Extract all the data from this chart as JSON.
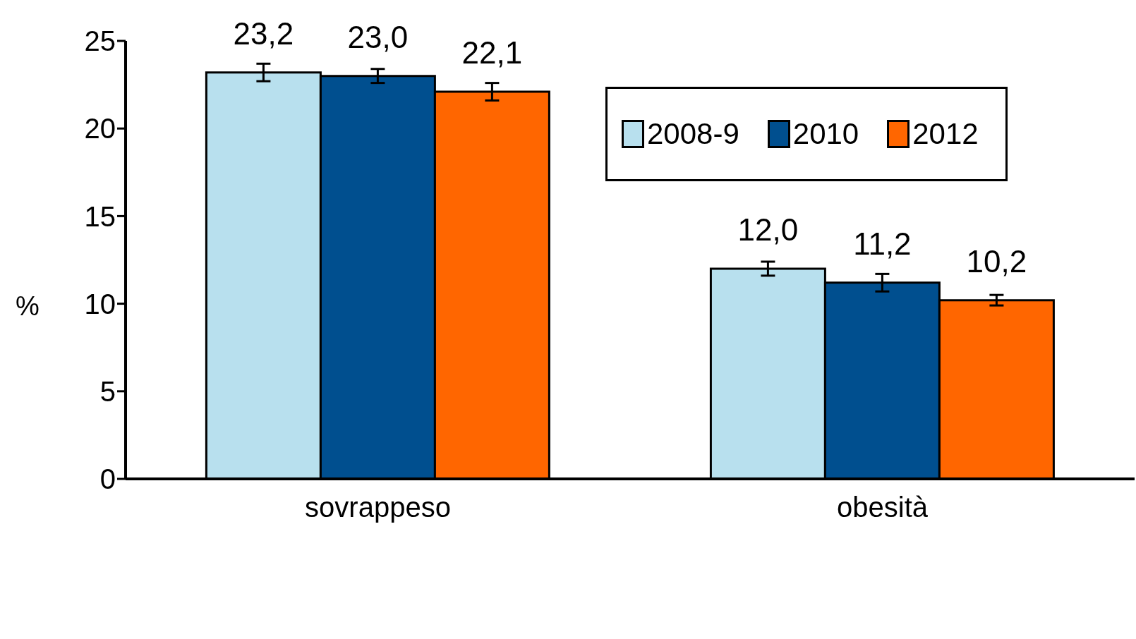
{
  "chart_data": {
    "type": "bar",
    "ylabel": "%",
    "categories": [
      "sovrappeso",
      "obesità"
    ],
    "series": [
      {
        "name": "2008-9",
        "color": "#b8e0ee",
        "values": [
          23.2,
          12.0
        ],
        "errors": [
          0.5,
          0.4
        ],
        "value_labels": [
          "23,2",
          "12,0"
        ]
      },
      {
        "name": "2010",
        "color": "#004f8f",
        "values": [
          23.0,
          11.2
        ],
        "errors": [
          0.4,
          0.5
        ],
        "value_labels": [
          "23,0",
          "11,2"
        ]
      },
      {
        "name": "2012",
        "color": "#ff6600",
        "values": [
          22.1,
          10.2
        ],
        "errors": [
          0.5,
          0.3
        ],
        "value_labels": [
          "22,1",
          "10,2"
        ]
      }
    ],
    "ylim": [
      0,
      25
    ],
    "yticks": [
      0,
      5,
      10,
      15,
      20,
      25
    ],
    "grid": false,
    "legend": "top right"
  }
}
